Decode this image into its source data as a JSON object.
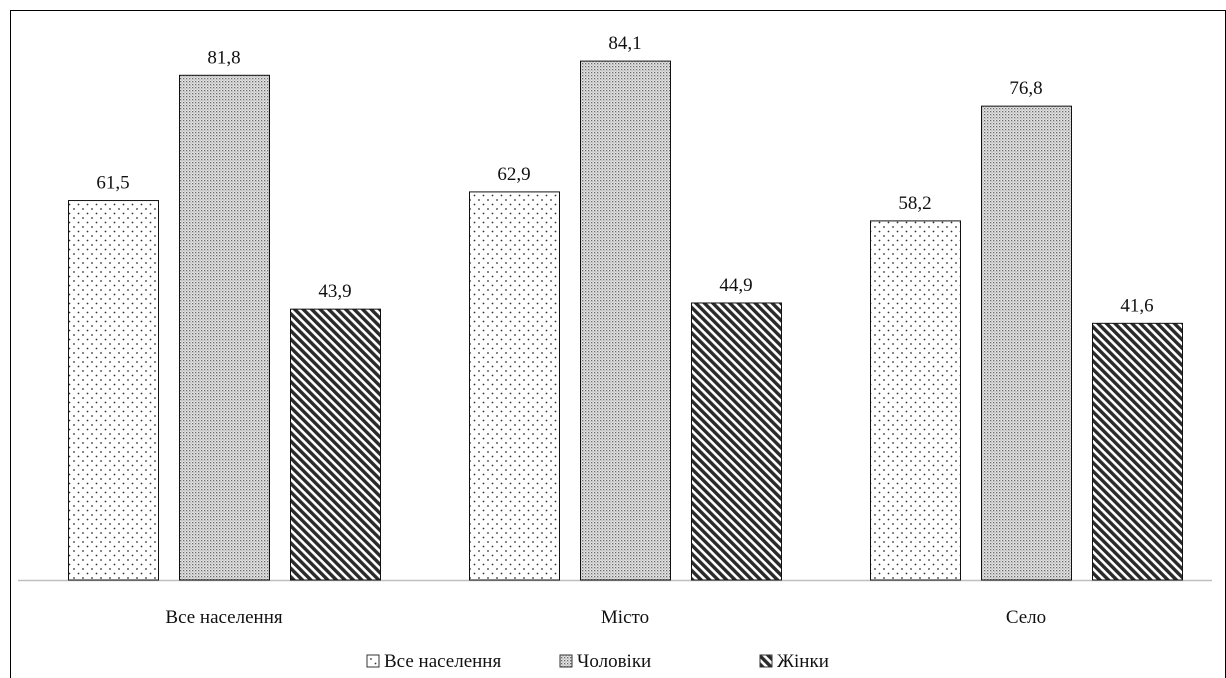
{
  "chart_data": {
    "type": "bar",
    "categories": [
      "Все населення",
      "Місто",
      "Село"
    ],
    "series": [
      {
        "name": "Все населення",
        "pattern": "sparse-dots",
        "values": [
          61.5,
          62.9,
          58.2
        ],
        "labels": [
          "61,5",
          "62,9",
          "58,2"
        ]
      },
      {
        "name": "Чоловіки",
        "pattern": "dense-dots",
        "values": [
          81.8,
          84.1,
          76.8
        ],
        "labels": [
          "81,8",
          "84,1",
          "76,8"
        ]
      },
      {
        "name": "Жінки",
        "pattern": "diagonal-stripes",
        "values": [
          43.9,
          44.9,
          41.6
        ],
        "labels": [
          "43,9",
          "44,9",
          "41,6"
        ]
      }
    ],
    "ylim": [
      0,
      90
    ],
    "grid": false,
    "legend_position": "bottom-center",
    "colors": {
      "frame": "#000000",
      "axis": "#bfbfbf",
      "bar_stroke": "#111111",
      "text": "#111111"
    }
  }
}
